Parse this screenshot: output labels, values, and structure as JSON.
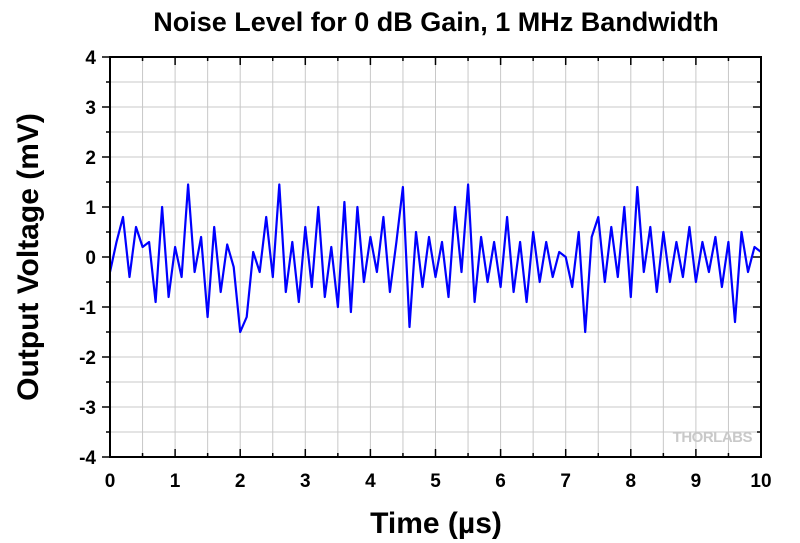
{
  "chart_data": {
    "type": "line",
    "title": "Noise Level for 0 dB Gain, 1 MHz Bandwidth",
    "xlabel": "Time (µs)",
    "ylabel": "Output Voltage (mV)",
    "xlim": [
      0,
      10
    ],
    "ylim": [
      -4,
      4
    ],
    "xticks": [
      0,
      1,
      2,
      3,
      4,
      5,
      6,
      7,
      8,
      9,
      10
    ],
    "yticks": [
      -4,
      -3,
      -2,
      -1,
      0,
      1,
      2,
      3,
      4
    ],
    "grid": true,
    "series": [
      {
        "color": "#0000ff",
        "x": [
          0,
          0.1,
          0.2,
          0.3,
          0.4,
          0.5,
          0.6,
          0.7,
          0.8,
          0.9,
          1.0,
          1.1,
          1.2,
          1.3,
          1.4,
          1.5,
          1.6,
          1.7,
          1.8,
          1.9,
          2.0,
          2.1,
          2.2,
          2.3,
          2.4,
          2.5,
          2.6,
          2.7,
          2.8,
          2.9,
          3.0,
          3.1,
          3.2,
          3.3,
          3.4,
          3.5,
          3.6,
          3.7,
          3.8,
          3.9,
          4.0,
          4.1,
          4.2,
          4.3,
          4.4,
          4.5,
          4.6,
          4.7,
          4.8,
          4.9,
          5.0,
          5.1,
          5.2,
          5.3,
          5.4,
          5.5,
          5.6,
          5.7,
          5.8,
          5.9,
          6.0,
          6.1,
          6.2,
          6.3,
          6.4,
          6.5,
          6.6,
          6.7,
          6.8,
          6.9,
          7.0,
          7.1,
          7.2,
          7.3,
          7.4,
          7.5,
          7.6,
          7.7,
          7.8,
          7.9,
          8.0,
          8.1,
          8.2,
          8.3,
          8.4,
          8.5,
          8.6,
          8.7,
          8.8,
          8.9,
          9.0,
          9.1,
          9.2,
          9.3,
          9.4,
          9.5,
          9.6,
          9.7,
          9.8,
          9.9,
          10.0
        ],
        "values": [
          -0.3,
          0.3,
          0.8,
          -0.4,
          0.6,
          0.2,
          0.3,
          -0.9,
          1.0,
          -0.8,
          0.2,
          -0.4,
          1.45,
          -0.3,
          0.4,
          -1.2,
          0.6,
          -0.7,
          0.25,
          -0.2,
          -1.5,
          -1.2,
          0.1,
          -0.3,
          0.8,
          -0.4,
          1.45,
          -0.7,
          0.3,
          -0.9,
          0.6,
          -0.6,
          1.0,
          -0.8,
          0.2,
          -1.0,
          1.1,
          -1.1,
          1.0,
          -0.5,
          0.4,
          -0.3,
          0.8,
          -0.7,
          0.3,
          1.4,
          -1.4,
          0.5,
          -0.6,
          0.4,
          -0.4,
          0.3,
          -0.8,
          1.0,
          -0.3,
          1.45,
          -0.9,
          0.4,
          -0.5,
          0.3,
          -0.6,
          0.8,
          -0.7,
          0.3,
          -0.9,
          0.5,
          -0.5,
          0.3,
          -0.4,
          0.1,
          0.0,
          -0.6,
          0.5,
          -1.5,
          0.4,
          0.8,
          -0.5,
          0.6,
          -0.4,
          1.0,
          -0.8,
          1.4,
          -0.3,
          0.6,
          -0.7,
          0.5,
          -0.5,
          0.3,
          -0.4,
          0.6,
          -0.5,
          0.3,
          -0.3,
          0.4,
          -0.6,
          0.3,
          -1.3,
          0.5,
          -0.3,
          0.2,
          0.1
        ]
      }
    ]
  },
  "watermark": "THORLABS"
}
